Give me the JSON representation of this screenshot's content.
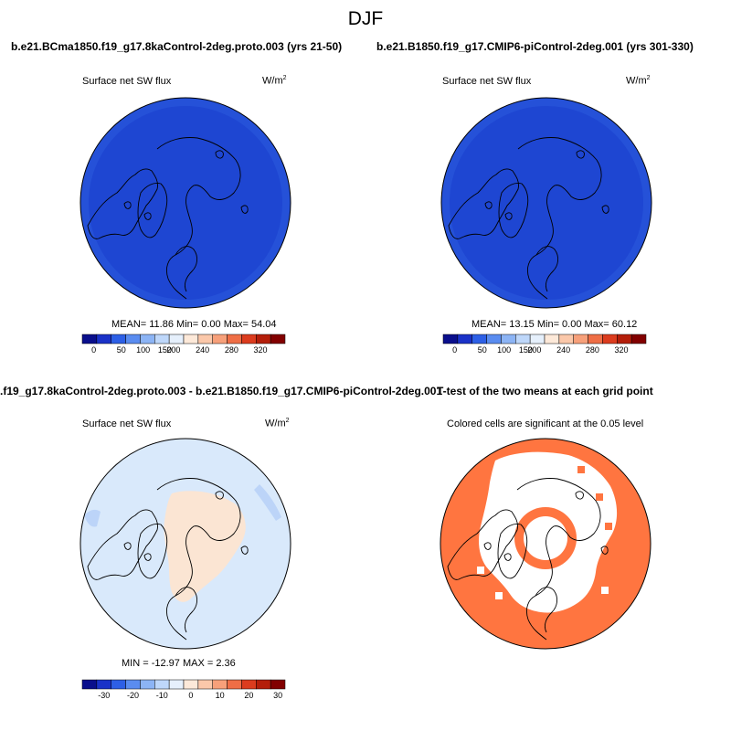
{
  "page": {
    "suptitle": "DJF",
    "bg_color": "#ffffff"
  },
  "panels": [
    {
      "title": "b.e21.BCma1850.f19_g17.8kaControl-2deg.proto.003 (yrs 21-50)",
      "left_label": "Surface net SW flux",
      "units": "W/m",
      "units_sup": "2",
      "stats": "MEAN=  11.86  Min=   0.00  Max=  54.04",
      "fill_color": "#1e46d2",
      "colorbar_ticks": [
        "0",
        "50",
        "100",
        "150",
        "200",
        "240",
        "280",
        "320"
      ]
    },
    {
      "title": "b.e21.B1850.f19_g17.CMIP6-piControl-2deg.001 (yrs 301-330)",
      "left_label": "Surface net SW flux",
      "units": "W/m",
      "units_sup": "2",
      "stats": "MEAN=  13.15  Min=   0.00  Max=  60.12",
      "fill_color": "#1e46d2",
      "colorbar_ticks": [
        "0",
        "50",
        "100",
        "150",
        "200",
        "240",
        "280",
        "320"
      ]
    },
    {
      "title": ".f19_g17.8kaControl-2deg.proto.003 - b.e21.B1850.f19_g17.CMIP6-piControl-2deg.001",
      "left_label": "Surface net SW flux",
      "units": "W/m",
      "units_sup": "2",
      "stats": "MIN = -12.97  MAX =   2.36",
      "fill_color": "#d9e9fb",
      "colorbar_ticks": [
        "-30",
        "-20",
        "-10",
        "0",
        "10",
        "20",
        "30"
      ]
    },
    {
      "title": "T-test of the two means at each grid point",
      "subtitle": "Colored cells are significant at the 0.05 level",
      "fill_color": "#ff7540"
    }
  ],
  "colorbar_abs": [
    "#0a0f8c",
    "#1a32c8",
    "#2d5fe6",
    "#5a8cf0",
    "#8cb4f5",
    "#bed7fa",
    "#e6f0fc",
    "#fde9d9",
    "#fbc8aa",
    "#f7a07a",
    "#ef6e46",
    "#dc3c1e",
    "#b41e0a",
    "#820000"
  ],
  "colorbar_diff": [
    "#0a0f8c",
    "#1a32c8",
    "#2d5fe6",
    "#5a8cf0",
    "#8cb4f5",
    "#bed7fa",
    "#e6f0fc",
    "#fde9d9",
    "#fbc8aa",
    "#f7a07a",
    "#ef6e46",
    "#dc3c1e",
    "#b41e0a",
    "#820000"
  ]
}
